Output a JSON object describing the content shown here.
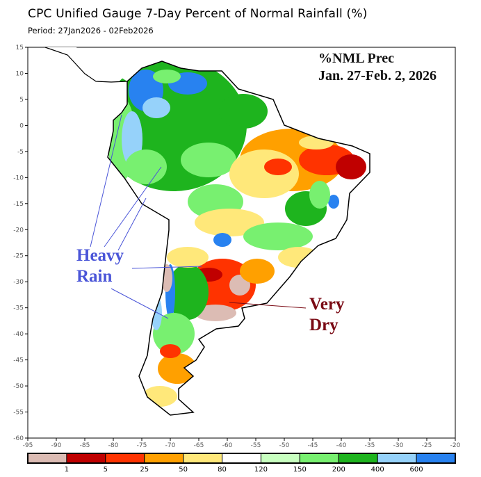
{
  "header": {
    "title": "CPC Unified Gauge 7-Day Percent of Normal Rainfall (%)",
    "period": "Period: 27Jan2026 - 02Feb2026"
  },
  "annotations": {
    "label_line1": "%NML Prec",
    "label_line2": "Jan. 27-Feb. 2, 2026",
    "heavy_rain_line1": "Heavy",
    "heavy_rain_line2": "Rain",
    "heavy_rain_color": "#4a55d8",
    "very_dry_line1": "Very",
    "very_dry_line2": "Dry",
    "very_dry_color": "#7a0a14"
  },
  "map": {
    "region": "South America",
    "lon_range": [
      -95,
      -20
    ],
    "lat_range": [
      -60,
      15
    ],
    "x_ticks": [
      "-95",
      "-90",
      "-85",
      "-80",
      "-75",
      "-70",
      "-65",
      "-60",
      "-55",
      "-50",
      "-45",
      "-40",
      "-35",
      "-30",
      "-25",
      "-20"
    ],
    "y_ticks": [
      "15",
      "10",
      "5",
      "0",
      "-5",
      "-10",
      "-15",
      "-20",
      "-25",
      "-30",
      "-35",
      "-40",
      "-45",
      "-50",
      "-55",
      "-60"
    ]
  },
  "colorbar": {
    "colors": [
      "#dcbcb4",
      "#c00000",
      "#ff3300",
      "#ffa000",
      "#ffe87a",
      "#ffffff",
      "#c8ffc0",
      "#78f070",
      "#1eb41e",
      "#96d2fa",
      "#2882f0"
    ],
    "labels": [
      "1",
      "5",
      "25",
      "50",
      "80",
      "120",
      "150",
      "200",
      "400",
      "600"
    ]
  }
}
